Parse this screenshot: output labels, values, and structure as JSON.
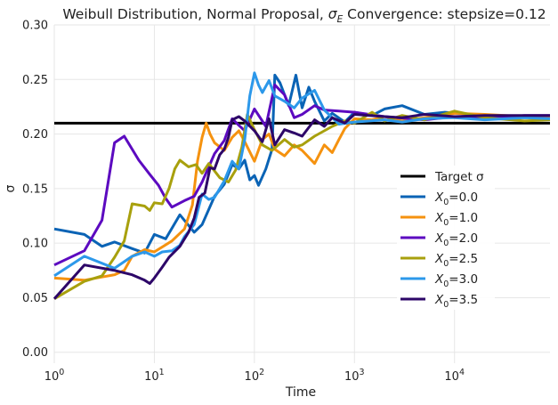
{
  "chart_data": {
    "type": "line",
    "title_main": "Weibull Distribution, Normal Proposal, ",
    "title_sym": "σ",
    "title_sub": "E",
    "title_rest": " Convergence: stepsize=0.12",
    "xlabel": "Time",
    "ylabel": "σ",
    "x_scale": "log",
    "xlim": [
      1,
      90000
    ],
    "ylim": [
      -0.01,
      0.3
    ],
    "x_ticks": [
      {
        "value": 1,
        "base": "10",
        "exp": "0"
      },
      {
        "value": 10,
        "base": "10",
        "exp": "1"
      },
      {
        "value": 100,
        "base": "10",
        "exp": "2"
      },
      {
        "value": 1000,
        "base": "10",
        "exp": "3"
      },
      {
        "value": 10000,
        "base": "10",
        "exp": "4"
      }
    ],
    "y_ticks": [
      {
        "value": 0.0,
        "label": "0.00"
      },
      {
        "value": 0.05,
        "label": "0.05"
      },
      {
        "value": 0.1,
        "label": "0.10"
      },
      {
        "value": 0.15,
        "label": "0.15"
      },
      {
        "value": 0.2,
        "label": "0.20"
      },
      {
        "value": 0.25,
        "label": "0.25"
      },
      {
        "value": 0.3,
        "label": "0.30"
      }
    ],
    "grid": true,
    "legend_position": "center-right",
    "target": {
      "name": "Target σ",
      "value": 0.21,
      "color": "#000000"
    },
    "series": [
      {
        "name_sym": "X",
        "name_sub": "0",
        "name_rest": "=0.0",
        "color": "#0a63b5",
        "points": [
          [
            1,
            0.113
          ],
          [
            2,
            0.108
          ],
          [
            3,
            0.097
          ],
          [
            4,
            0.101
          ],
          [
            6,
            0.095
          ],
          [
            8,
            0.091
          ],
          [
            10,
            0.108
          ],
          [
            13,
            0.104
          ],
          [
            18,
            0.126
          ],
          [
            25,
            0.11
          ],
          [
            30,
            0.117
          ],
          [
            40,
            0.143
          ],
          [
            50,
            0.154
          ],
          [
            60,
            0.172
          ],
          [
            70,
            0.168
          ],
          [
            80,
            0.176
          ],
          [
            90,
            0.158
          ],
          [
            100,
            0.162
          ],
          [
            110,
            0.153
          ],
          [
            130,
            0.168
          ],
          [
            150,
            0.186
          ],
          [
            160,
            0.254
          ],
          [
            180,
            0.247
          ],
          [
            220,
            0.226
          ],
          [
            260,
            0.254
          ],
          [
            300,
            0.224
          ],
          [
            350,
            0.243
          ],
          [
            400,
            0.23
          ],
          [
            500,
            0.212
          ],
          [
            600,
            0.219
          ],
          [
            800,
            0.211
          ],
          [
            1000,
            0.22
          ],
          [
            1500,
            0.217
          ],
          [
            2000,
            0.223
          ],
          [
            3000,
            0.226
          ],
          [
            5000,
            0.218
          ],
          [
            8000,
            0.22
          ],
          [
            15000,
            0.218
          ],
          [
            30000,
            0.215
          ],
          [
            60000,
            0.216
          ],
          [
            90000,
            0.216
          ]
        ]
      },
      {
        "name_sym": "X",
        "name_sub": "0",
        "name_rest": "=1.0",
        "color": "#f5920f",
        "points": [
          [
            1,
            0.068
          ],
          [
            2,
            0.066
          ],
          [
            3,
            0.069
          ],
          [
            4,
            0.071
          ],
          [
            5,
            0.075
          ],
          [
            6,
            0.088
          ],
          [
            8,
            0.094
          ],
          [
            10,
            0.092
          ],
          [
            15,
            0.102
          ],
          [
            20,
            0.113
          ],
          [
            24,
            0.135
          ],
          [
            27,
            0.175
          ],
          [
            30,
            0.197
          ],
          [
            33,
            0.21
          ],
          [
            36,
            0.2
          ],
          [
            40,
            0.192
          ],
          [
            50,
            0.185
          ],
          [
            60,
            0.197
          ],
          [
            70,
            0.203
          ],
          [
            80,
            0.193
          ],
          [
            100,
            0.175
          ],
          [
            120,
            0.195
          ],
          [
            140,
            0.2
          ],
          [
            160,
            0.186
          ],
          [
            200,
            0.18
          ],
          [
            250,
            0.19
          ],
          [
            300,
            0.185
          ],
          [
            400,
            0.173
          ],
          [
            500,
            0.19
          ],
          [
            600,
            0.183
          ],
          [
            700,
            0.195
          ],
          [
            800,
            0.205
          ],
          [
            1000,
            0.214
          ],
          [
            1500,
            0.213
          ],
          [
            2000,
            0.216
          ],
          [
            3000,
            0.212
          ],
          [
            5000,
            0.215
          ],
          [
            10000,
            0.219
          ],
          [
            20000,
            0.218
          ],
          [
            50000,
            0.216
          ],
          [
            90000,
            0.216
          ]
        ]
      },
      {
        "name_sym": "X",
        "name_sub": "0",
        "name_rest": "=2.0",
        "color": "#5c0ac0",
        "points": [
          [
            1,
            0.08
          ],
          [
            2,
            0.093
          ],
          [
            3,
            0.121
          ],
          [
            4,
            0.192
          ],
          [
            5,
            0.198
          ],
          [
            7,
            0.176
          ],
          [
            9,
            0.163
          ],
          [
            11,
            0.153
          ],
          [
            13,
            0.141
          ],
          [
            15,
            0.133
          ],
          [
            20,
            0.139
          ],
          [
            25,
            0.143
          ],
          [
            30,
            0.156
          ],
          [
            40,
            0.182
          ],
          [
            50,
            0.194
          ],
          [
            60,
            0.214
          ],
          [
            70,
            0.208
          ],
          [
            80,
            0.203
          ],
          [
            100,
            0.223
          ],
          [
            130,
            0.207
          ],
          [
            160,
            0.245
          ],
          [
            200,
            0.236
          ],
          [
            250,
            0.215
          ],
          [
            300,
            0.218
          ],
          [
            400,
            0.226
          ],
          [
            500,
            0.222
          ],
          [
            700,
            0.221
          ],
          [
            1000,
            0.22
          ],
          [
            2000,
            0.216
          ],
          [
            5000,
            0.213
          ],
          [
            10000,
            0.216
          ],
          [
            20000,
            0.214
          ],
          [
            50000,
            0.217
          ],
          [
            90000,
            0.217
          ]
        ]
      },
      {
        "name_sym": "X",
        "name_sub": "0",
        "name_rest": "=2.5",
        "color": "#a8a00d",
        "points": [
          [
            1,
            0.049
          ],
          [
            2,
            0.065
          ],
          [
            3,
            0.07
          ],
          [
            4,
            0.087
          ],
          [
            5,
            0.102
          ],
          [
            6,
            0.136
          ],
          [
            8,
            0.134
          ],
          [
            9,
            0.13
          ],
          [
            10,
            0.137
          ],
          [
            12,
            0.136
          ],
          [
            14,
            0.15
          ],
          [
            16,
            0.168
          ],
          [
            18,
            0.176
          ],
          [
            22,
            0.17
          ],
          [
            26,
            0.172
          ],
          [
            30,
            0.164
          ],
          [
            35,
            0.173
          ],
          [
            45,
            0.16
          ],
          [
            55,
            0.156
          ],
          [
            65,
            0.167
          ],
          [
            75,
            0.188
          ],
          [
            85,
            0.218
          ],
          [
            100,
            0.204
          ],
          [
            120,
            0.19
          ],
          [
            150,
            0.185
          ],
          [
            200,
            0.195
          ],
          [
            250,
            0.188
          ],
          [
            300,
            0.19
          ],
          [
            400,
            0.198
          ],
          [
            600,
            0.207
          ],
          [
            800,
            0.212
          ],
          [
            1000,
            0.21
          ],
          [
            1500,
            0.22
          ],
          [
            2000,
            0.212
          ],
          [
            3000,
            0.217
          ],
          [
            5000,
            0.213
          ],
          [
            10000,
            0.221
          ],
          [
            20000,
            0.215
          ],
          [
            50000,
            0.212
          ],
          [
            90000,
            0.213
          ]
        ]
      },
      {
        "name_sym": "X",
        "name_sub": "0",
        "name_rest": "=3.0",
        "color": "#2c98ea",
        "points": [
          [
            1,
            0.07
          ],
          [
            2,
            0.088
          ],
          [
            4,
            0.077
          ],
          [
            6,
            0.088
          ],
          [
            8,
            0.092
          ],
          [
            10,
            0.088
          ],
          [
            12,
            0.092
          ],
          [
            15,
            0.093
          ],
          [
            18,
            0.098
          ],
          [
            20,
            0.106
          ],
          [
            25,
            0.117
          ],
          [
            30,
            0.145
          ],
          [
            35,
            0.14
          ],
          [
            40,
            0.142
          ],
          [
            50,
            0.157
          ],
          [
            60,
            0.175
          ],
          [
            70,
            0.168
          ],
          [
            80,
            0.195
          ],
          [
            90,
            0.235
          ],
          [
            100,
            0.256
          ],
          [
            110,
            0.245
          ],
          [
            120,
            0.238
          ],
          [
            140,
            0.249
          ],
          [
            160,
            0.235
          ],
          [
            200,
            0.23
          ],
          [
            250,
            0.224
          ],
          [
            300,
            0.233
          ],
          [
            400,
            0.24
          ],
          [
            500,
            0.222
          ],
          [
            700,
            0.209
          ],
          [
            1000,
            0.211
          ],
          [
            2000,
            0.213
          ],
          [
            3000,
            0.211
          ],
          [
            5000,
            0.214
          ],
          [
            10000,
            0.215
          ],
          [
            20000,
            0.213
          ],
          [
            50000,
            0.215
          ],
          [
            90000,
            0.214
          ]
        ]
      },
      {
        "name_sym": "X",
        "name_sub": "0",
        "name_rest": "=3.5",
        "color": "#2d0668",
        "points": [
          [
            1,
            0.049
          ],
          [
            2,
            0.08
          ],
          [
            4,
            0.075
          ],
          [
            6,
            0.071
          ],
          [
            8,
            0.066
          ],
          [
            9,
            0.063
          ],
          [
            10,
            0.068
          ],
          [
            12,
            0.078
          ],
          [
            14,
            0.087
          ],
          [
            18,
            0.097
          ],
          [
            22,
            0.11
          ],
          [
            25,
            0.123
          ],
          [
            28,
            0.142
          ],
          [
            32,
            0.146
          ],
          [
            36,
            0.169
          ],
          [
            40,
            0.168
          ],
          [
            45,
            0.181
          ],
          [
            50,
            0.186
          ],
          [
            55,
            0.197
          ],
          [
            60,
            0.213
          ],
          [
            70,
            0.216
          ],
          [
            80,
            0.212
          ],
          [
            100,
            0.203
          ],
          [
            120,
            0.193
          ],
          [
            140,
            0.214
          ],
          [
            160,
            0.19
          ],
          [
            200,
            0.204
          ],
          [
            250,
            0.201
          ],
          [
            300,
            0.198
          ],
          [
            400,
            0.213
          ],
          [
            500,
            0.207
          ],
          [
            600,
            0.215
          ],
          [
            800,
            0.21
          ],
          [
            1000,
            0.218
          ],
          [
            2000,
            0.216
          ],
          [
            3000,
            0.215
          ],
          [
            5000,
            0.218
          ],
          [
            10000,
            0.216
          ],
          [
            20000,
            0.217
          ],
          [
            50000,
            0.217
          ],
          [
            90000,
            0.217
          ]
        ]
      }
    ]
  }
}
